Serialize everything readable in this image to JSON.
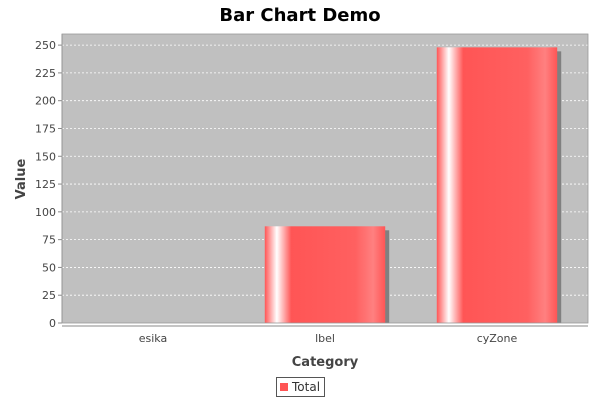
{
  "chart_data": {
    "type": "bar",
    "title": "Bar Chart Demo",
    "xlabel": "Category",
    "ylabel": "Value",
    "categories": [
      "esika",
      "lbel",
      "cyZone"
    ],
    "series": [
      {
        "name": "Total",
        "values": [
          0,
          87,
          248
        ],
        "color": "#ff5555"
      }
    ],
    "ylim": [
      0,
      260
    ],
    "yticks": [
      0,
      25,
      50,
      75,
      100,
      125,
      150,
      175,
      200,
      225,
      250
    ],
    "grid": true,
    "legend_position": "bottom",
    "colors": {
      "plot_background": "#c0c0c0",
      "grid_line": "#ffffff",
      "bar_fill": "#ff5555",
      "bar_shadow": "#808080"
    }
  }
}
